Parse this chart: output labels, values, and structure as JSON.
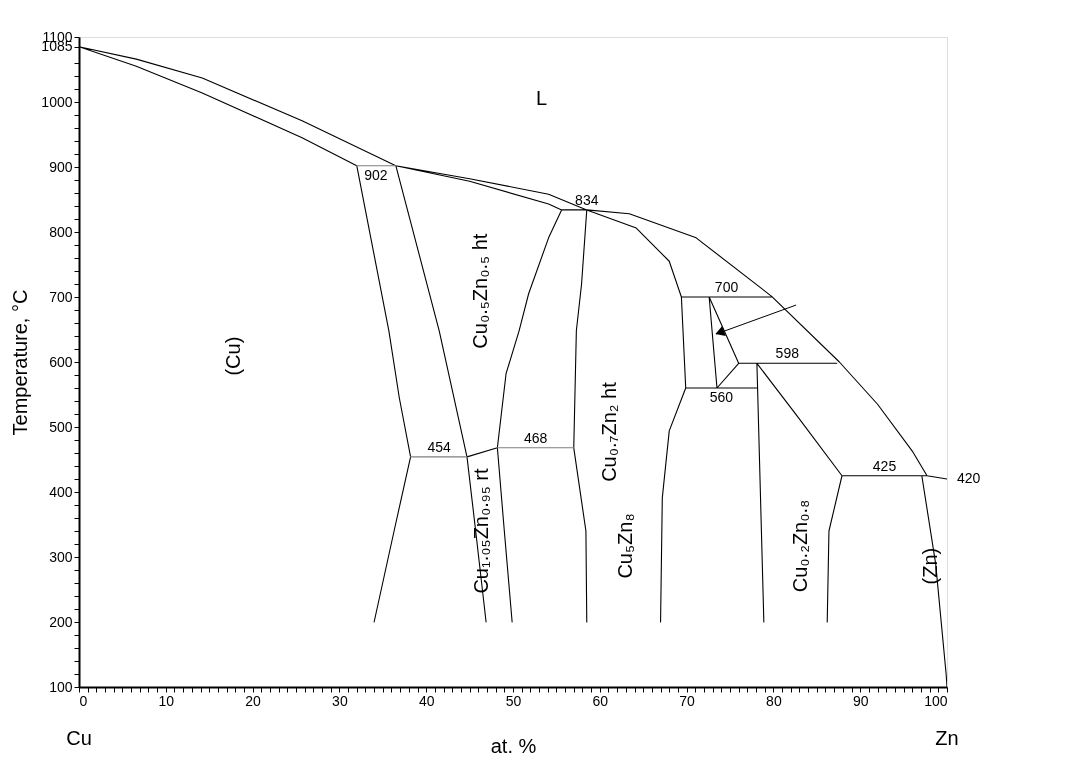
{
  "chart_data": {
    "type": "line",
    "xlabel": "at. %",
    "ylabel": "Temperature, °C",
    "xlim": [
      0,
      100
    ],
    "ylim": [
      100,
      1100
    ],
    "xticks": [
      0,
      {
        "value": 1,
        "label": null
      },
      {
        "value": 2,
        "label": null
      },
      {
        "value": 3,
        "label": null
      },
      {
        "value": 4,
        "label": null
      },
      {
        "value": 5,
        "label": null
      },
      {
        "value": 6,
        "label": null
      },
      {
        "value": 7,
        "label": null
      },
      {
        "value": 8,
        "label": null
      },
      {
        "value": 9,
        "label": null
      },
      10,
      {
        "value": 11,
        "label": null
      },
      {
        "value": 12,
        "label": null
      },
      {
        "value": 13,
        "label": null
      },
      {
        "value": 14,
        "label": null
      },
      {
        "value": 15,
        "label": null
      },
      {
        "value": 16,
        "label": null
      },
      {
        "value": 17,
        "label": null
      },
      {
        "value": 18,
        "label": null
      },
      {
        "value": 19,
        "label": null
      },
      20,
      {
        "value": 21,
        "label": null
      },
      {
        "value": 22,
        "label": null
      },
      {
        "value": 23,
        "label": null
      },
      {
        "value": 24,
        "label": null
      },
      {
        "value": 25,
        "label": null
      },
      {
        "value": 26,
        "label": null
      },
      {
        "value": 27,
        "label": null
      },
      {
        "value": 28,
        "label": null
      },
      {
        "value": 29,
        "label": null
      },
      30,
      {
        "value": 31,
        "label": null
      },
      {
        "value": 32,
        "label": null
      },
      {
        "value": 33,
        "label": null
      },
      {
        "value": 34,
        "label": null
      },
      {
        "value": 35,
        "label": null
      },
      {
        "value": 36,
        "label": null
      },
      {
        "value": 37,
        "label": null
      },
      {
        "value": 38,
        "label": null
      },
      {
        "value": 39,
        "label": null
      },
      40,
      {
        "value": 41,
        "label": null
      },
      {
        "value": 42,
        "label": null
      },
      {
        "value": 43,
        "label": null
      },
      {
        "value": 44,
        "label": null
      },
      {
        "value": 45,
        "label": null
      },
      {
        "value": 46,
        "label": null
      },
      {
        "value": 47,
        "label": null
      },
      {
        "value": 48,
        "label": null
      },
      {
        "value": 49,
        "label": null
      },
      50,
      {
        "value": 51,
        "label": null
      },
      {
        "value": 52,
        "label": null
      },
      {
        "value": 53,
        "label": null
      },
      {
        "value": 54,
        "label": null
      },
      {
        "value": 55,
        "label": null
      },
      {
        "value": 56,
        "label": null
      },
      {
        "value": 57,
        "label": null
      },
      {
        "value": 58,
        "label": null
      },
      {
        "value": 59,
        "label": null
      },
      60,
      {
        "value": 61,
        "label": null
      },
      {
        "value": 62,
        "label": null
      },
      {
        "value": 63,
        "label": null
      },
      {
        "value": 64,
        "label": null
      },
      {
        "value": 65,
        "label": null
      },
      {
        "value": 66,
        "label": null
      },
      {
        "value": 67,
        "label": null
      },
      {
        "value": 68,
        "label": null
      },
      {
        "value": 69,
        "label": null
      },
      70,
      {
        "value": 71,
        "label": null
      },
      {
        "value": 72,
        "label": null
      },
      {
        "value": 73,
        "label": null
      },
      {
        "value": 74,
        "label": null
      },
      {
        "value": 75,
        "label": null
      },
      {
        "value": 76,
        "label": null
      },
      {
        "value": 77,
        "label": null
      },
      {
        "value": 78,
        "label": null
      },
      {
        "value": 79,
        "label": null
      },
      80,
      {
        "value": 81,
        "label": null
      },
      {
        "value": 82,
        "label": null
      },
      {
        "value": 83,
        "label": null
      },
      {
        "value": 84,
        "label": null
      },
      {
        "value": 85,
        "label": null
      },
      {
        "value": 86,
        "label": null
      },
      {
        "value": 87,
        "label": null
      },
      {
        "value": 88,
        "label": null
      },
      {
        "value": 89,
        "label": null
      },
      90,
      {
        "value": 91,
        "label": null
      },
      {
        "value": 92,
        "label": null
      },
      {
        "value": 93,
        "label": null
      },
      {
        "value": 94,
        "label": null
      },
      {
        "value": 95,
        "label": null
      },
      {
        "value": 96,
        "label": null
      },
      {
        "value": 97,
        "label": null
      },
      {
        "value": 98,
        "label": null
      },
      {
        "value": 99,
        "label": null
      },
      100
    ],
    "yticks": [
      100,
      {
        "value": 120,
        "label": null
      },
      {
        "value": 140,
        "label": null
      },
      {
        "value": 160,
        "label": null
      },
      {
        "value": 180,
        "label": null
      },
      200,
      {
        "value": 220,
        "label": null
      },
      {
        "value": 240,
        "label": null
      },
      {
        "value": 260,
        "label": null
      },
      {
        "value": 280,
        "label": null
      },
      300,
      {
        "value": 320,
        "label": null
      },
      {
        "value": 340,
        "label": null
      },
      {
        "value": 360,
        "label": null
      },
      {
        "value": 380,
        "label": null
      },
      400,
      {
        "value": 420,
        "label": null
      },
      {
        "value": 440,
        "label": null
      },
      {
        "value": 460,
        "label": null
      },
      {
        "value": 480,
        "label": null
      },
      500,
      {
        "value": 520,
        "label": null
      },
      {
        "value": 540,
        "label": null
      },
      {
        "value": 560,
        "label": null
      },
      {
        "value": 580,
        "label": null
      },
      600,
      {
        "value": 620,
        "label": null
      },
      {
        "value": 640,
        "label": null
      },
      {
        "value": 660,
        "label": null
      },
      {
        "value": 680,
        "label": null
      },
      700,
      {
        "value": 720,
        "label": null
      },
      {
        "value": 740,
        "label": null
      },
      {
        "value": 760,
        "label": null
      },
      {
        "value": 780,
        "label": null
      },
      800,
      {
        "value": 820,
        "label": null
      },
      {
        "value": 840,
        "label": null
      },
      {
        "value": 860,
        "label": null
      },
      {
        "value": 880,
        "label": null
      },
      900,
      {
        "value": 920,
        "label": null
      },
      {
        "value": 940,
        "label": null
      },
      {
        "value": 960,
        "label": null
      },
      {
        "value": 980,
        "label": null
      },
      1000,
      {
        "value": 1020,
        "label": null
      },
      {
        "value": 1040,
        "label": null
      },
      {
        "value": 1060,
        "label": null
      },
      1085,
      1100
    ],
    "grid": false,
    "marker": "none",
    "line_style": "solid",
    "series": [
      {
        "color": "#000000",
        "x": [
          32,
          25.7,
          14.2,
          6.6,
          0,
          6.6,
          14.2,
          25.7,
          36.5,
          45,
          54.1,
          55.6,
          58.5,
          54.1,
          45,
          36.5,
          45,
          54.1,
          58.5,
          63.4,
          71.1,
          79.8,
          87.6,
          92,
          96,
          97.7,
          100,
          null,
          32,
          35.7,
          36.9,
          38.2,
          36.3,
          34,
          null,
          36.5,
          41.5,
          44.7,
          45.7,
          46.9,
          null,
          44.7,
          48.2,
          null,
          55.6,
          54.1,
          51.8,
          50.7,
          49.2,
          48.2,
          49,
          49.9,
          null,
          58.5,
          57.9,
          57.3,
          57,
          58.4,
          58.5,
          null,
          58.5,
          64.2,
          68,
          69.4,
          69.9,
          68,
          67.2,
          67,
          null,
          69.4,
          79.8,
          null,
          72.6,
          73.5,
          null,
          72.6,
          76,
          73.5,
          null,
          69.9,
          78.1,
          null,
          76,
          87.3,
          null,
          78.1,
          78.9,
          null,
          78.1,
          82.9,
          87.9,
          86.4,
          86.2,
          null,
          87.9,
          97.7,
          null,
          97.1,
          98.7,
          99.9,
          100
        ],
        "values": [
          902,
          945,
          1014,
          1055,
          1085,
          1066,
          1037,
          971,
          902,
          878,
          843,
          834,
          834,
          858,
          882,
          902,
          882,
          858,
          834,
          828,
          791,
          701,
          600,
          535,
          463,
          425,
          420,
          null,
          902,
          648,
          545,
          454,
          340,
          200,
          null,
          902,
          648,
          454,
          340,
          200,
          null,
          454,
          468,
          null,
          834,
          791,
          705,
          648,
          582,
          468,
          340,
          200,
          null,
          834,
          720,
          648,
          468,
          340,
          200,
          null,
          834,
          806,
          755,
          700,
          560,
          494,
          391,
          200,
          null,
          700,
          700,
          null,
          700,
          560,
          null,
          700,
          598,
          560,
          null,
          560,
          560,
          null,
          598,
          598,
          null,
          598,
          200,
          null,
          598,
          514,
          425,
          340,
          200,
          null,
          425,
          425,
          null,
          425,
          289,
          120,
          100
        ]
      },
      {
        "color": "#808080",
        "x": [
          32,
          36.5
        ],
        "values": [
          902,
          902
        ]
      },
      {
        "color": "#808080",
        "x": [
          38.2,
          44.7
        ],
        "values": [
          454,
          454
        ]
      },
      {
        "color": "#808080",
        "x": [
          48.2,
          57
        ],
        "values": [
          468,
          468
        ]
      }
    ],
    "annotations": [
      "Cu",
      "Zn",
      "L",
      {
        "text": "902",
        "x": 34.2,
        "y": 902
      },
      {
        "text": "834",
        "x": 58.5,
        "y": 834
      },
      {
        "text": "700",
        "x": 74.6,
        "y": 700
      },
      {
        "text": "598",
        "x": 81.6,
        "y": 598
      },
      {
        "text": "560",
        "x": 74,
        "y": 560
      },
      {
        "text": "454",
        "x": 41.5,
        "y": 454
      },
      {
        "text": "468",
        "x": 52.6,
        "y": 468
      },
      {
        "text": "425",
        "x": 92.8,
        "y": 425
      },
      {
        "text": "420",
        "x": 100,
        "y": 420
      },
      "(Cu)",
      "Cu₀.₅Zn₀.₅ ht",
      "Cu₁.₀₅Zn₀.₉₅ rt",
      "Cu₅Zn₈",
      "Cu₀.₂Zn₀.₈",
      {
        "text": "(Zn)",
        "x": 98.2,
        "y": 286
      },
      "Cu₀.₇Zn₂ ht"
    ]
  }
}
